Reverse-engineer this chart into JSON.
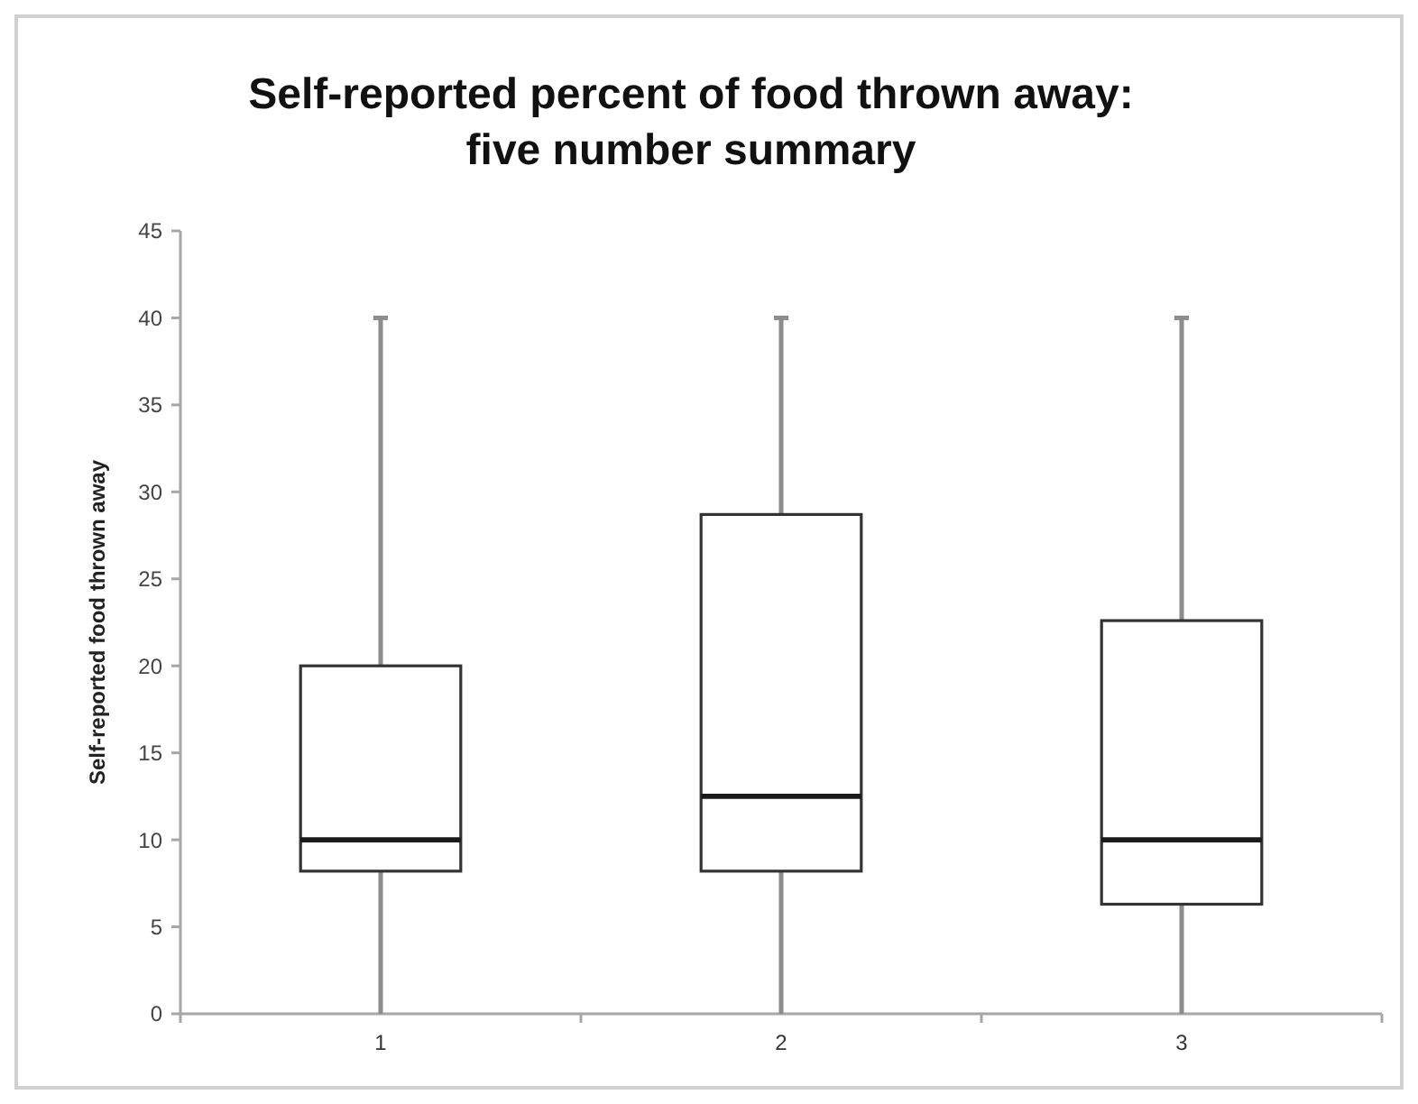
{
  "chart_data": {
    "type": "box",
    "title": "Self-reported percent of food thrown away:\nfive number summary",
    "ylabel": "Self-reported food thrown away",
    "categories": [
      "1",
      "2",
      "3"
    ],
    "boxes": [
      {
        "low": 0,
        "q1": 8.2,
        "median": 10,
        "q3": 20,
        "high": 40
      },
      {
        "low": 0,
        "q1": 8.2,
        "median": 12.5,
        "q3": 28.7,
        "high": 40
      },
      {
        "low": 0,
        "q1": 6.3,
        "median": 10,
        "q3": 22.6,
        "high": 40
      }
    ],
    "ylim": [
      0,
      45
    ],
    "yticks": [
      0,
      5,
      10,
      15,
      20,
      25,
      30,
      35,
      40,
      45
    ],
    "grid": false
  }
}
